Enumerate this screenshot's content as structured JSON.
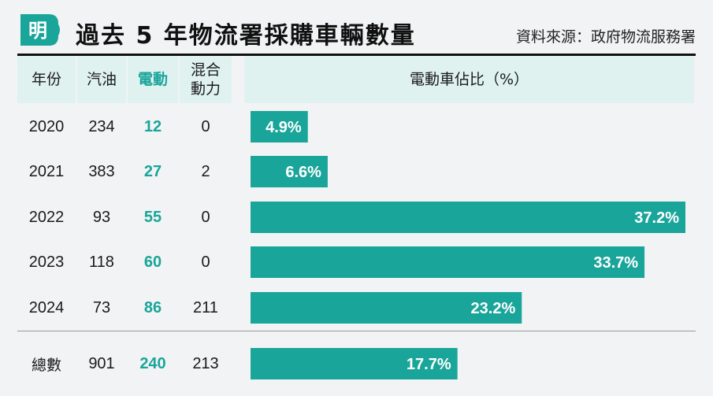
{
  "logo_text": "明",
  "title": "過去 5 年物流署採購車輛數量",
  "source": "資料來源：政府物流服務署",
  "headers": {
    "year": "年份",
    "petrol": "汽油",
    "electric": "電動",
    "hybrid_line1": "混合",
    "hybrid_line2": "動力",
    "ratio": "電動車佔比（%）"
  },
  "rows": [
    {
      "year": "2020",
      "petrol": "234",
      "electric": "12",
      "hybrid": "0"
    },
    {
      "year": "2021",
      "petrol": "383",
      "electric": "27",
      "hybrid": "2"
    },
    {
      "year": "2022",
      "petrol": "93",
      "electric": "55",
      "hybrid": "0"
    },
    {
      "year": "2023",
      "petrol": "118",
      "electric": "60",
      "hybrid": "0"
    },
    {
      "year": "2024",
      "petrol": "73",
      "electric": "86",
      "hybrid": "211"
    }
  ],
  "total_row": {
    "year": "總數",
    "petrol": "901",
    "electric": "240",
    "hybrid": "213"
  },
  "colors": {
    "bar": "#1aa59a",
    "header_bg": "#dff2f0",
    "accent_text": "#1aa59a"
  },
  "chart_data": {
    "type": "bar",
    "orientation": "horizontal",
    "title": "電動車佔比（%）",
    "categories": [
      "2020",
      "2021",
      "2022",
      "2023",
      "2024",
      "總數"
    ],
    "values": [
      4.9,
      6.6,
      37.2,
      33.7,
      23.2,
      17.7
    ],
    "labels": [
      "4.9%",
      "6.6%",
      "37.2%",
      "33.7%",
      "23.2%",
      "17.7%"
    ],
    "xlim": [
      0,
      37.2
    ]
  }
}
